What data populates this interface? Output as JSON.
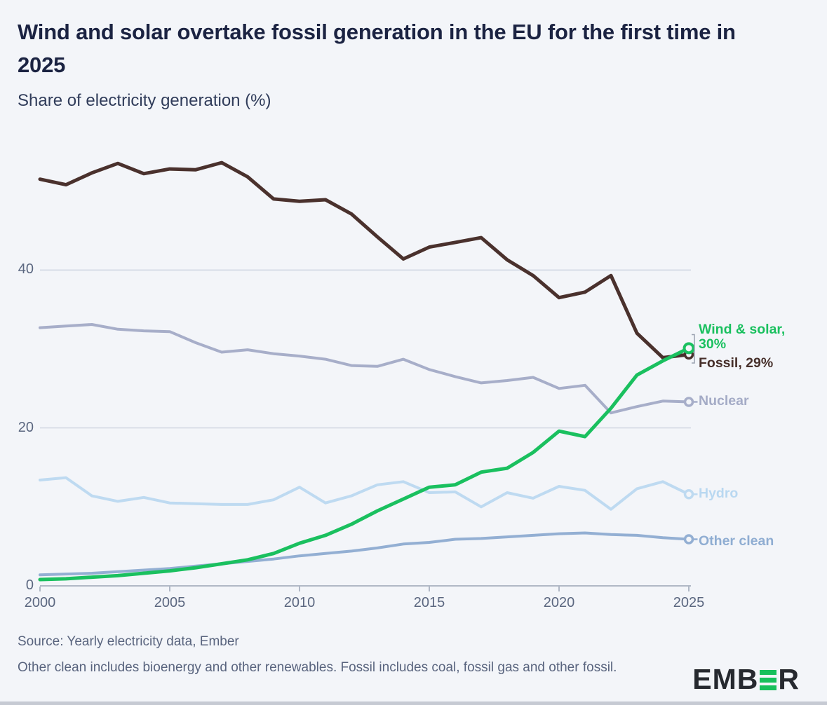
{
  "title": "Wind and solar overtake fossil generation in the EU for the first time in 2025",
  "subtitle": "Share of electricity generation (%)",
  "colors": {
    "background": "#f3f5f9",
    "title": "#1b2342",
    "grid": "#ccd2df",
    "axis": "#9aa3b4",
    "tick_text": "#5b6780",
    "bracket": "#9aa2b0",
    "fossil": "#4a312d",
    "wind_solar": "#1ac05f",
    "nuclear": "#a7aec9",
    "hydro": "#bedaf1",
    "other_clean": "#93afd3"
  },
  "chart_data": {
    "type": "line",
    "title": "Wind and solar overtake fossil generation in the EU for the first time in 2025",
    "subtitle": "Share of electricity generation (%)",
    "xlabel": "",
    "ylabel": "Share of electricity generation (%)",
    "xlim": [
      2000,
      2025
    ],
    "ylim": [
      0,
      56
    ],
    "grid": "horizontal",
    "legend_position": "right-of-line-ends",
    "xticks": [
      2000,
      2005,
      2010,
      2015,
      2020,
      2025
    ],
    "yticks": [
      0,
      20,
      40
    ],
    "x": [
      2000,
      2001,
      2002,
      2003,
      2004,
      2005,
      2006,
      2007,
      2008,
      2009,
      2010,
      2011,
      2012,
      2013,
      2014,
      2015,
      2016,
      2017,
      2018,
      2019,
      2020,
      2021,
      2022,
      2023,
      2024,
      2025
    ],
    "series": [
      {
        "id": "other_clean",
        "name": "Other clean",
        "color": "#93afd3",
        "values": [
          1.4,
          1.5,
          1.6,
          1.8,
          2.0,
          2.2,
          2.5,
          2.8,
          3.1,
          3.4,
          3.8,
          4.1,
          4.4,
          4.8,
          5.3,
          5.5,
          5.9,
          6.0,
          6.2,
          6.4,
          6.6,
          6.7,
          6.5,
          6.4,
          6.1,
          5.9
        ]
      },
      {
        "id": "hydro",
        "name": "Hydro",
        "color": "#bedaf1",
        "values": [
          13.4,
          13.7,
          11.4,
          10.7,
          11.2,
          10.5,
          10.4,
          10.3,
          10.3,
          10.9,
          12.5,
          10.5,
          11.4,
          12.8,
          13.2,
          11.8,
          11.9,
          10.0,
          11.8,
          11.1,
          12.6,
          12.1,
          9.7,
          12.3,
          13.2,
          11.6
        ]
      },
      {
        "id": "nuclear",
        "name": "Nuclear",
        "color": "#a7aec9",
        "values": [
          32.7,
          32.9,
          33.1,
          32.5,
          32.3,
          32.2,
          30.8,
          29.6,
          29.9,
          29.4,
          29.1,
          28.7,
          27.9,
          27.8,
          28.7,
          27.4,
          26.5,
          25.7,
          26.0,
          26.4,
          25.0,
          25.4,
          21.9,
          22.7,
          23.4,
          23.3
        ]
      },
      {
        "id": "fossil",
        "name": "Fossil",
        "color": "#4a312d",
        "values": [
          51.5,
          50.8,
          52.3,
          53.5,
          52.2,
          52.8,
          52.7,
          53.6,
          51.8,
          49.0,
          48.7,
          48.9,
          47.1,
          44.2,
          41.4,
          42.9,
          43.5,
          44.1,
          41.3,
          39.3,
          36.5,
          37.2,
          39.3,
          32.0,
          28.9,
          29.3
        ]
      },
      {
        "id": "wind_solar",
        "name": "Wind & solar",
        "color": "#1ac05f",
        "values": [
          0.8,
          0.9,
          1.1,
          1.3,
          1.6,
          1.9,
          2.3,
          2.8,
          3.3,
          4.1,
          5.4,
          6.4,
          7.8,
          9.5,
          11.0,
          12.5,
          12.8,
          14.4,
          14.9,
          16.9,
          19.6,
          18.9,
          22.5,
          26.7,
          28.5,
          30.1
        ]
      }
    ],
    "annotations": [
      {
        "series": "wind_solar",
        "text": "Wind & solar, 30%"
      },
      {
        "series": "fossil",
        "text": "Fossil, 29%"
      },
      {
        "series": "nuclear",
        "text": "Nuclear"
      },
      {
        "series": "hydro",
        "text": "Hydro"
      },
      {
        "series": "other_clean",
        "text": "Other clean"
      }
    ]
  },
  "tick_labels": {
    "x": [
      "2000",
      "2005",
      "2010",
      "2015",
      "2020",
      "2025"
    ],
    "y": [
      "0",
      "20",
      "40"
    ]
  },
  "series_labels": {
    "wind_solar_line1": "Wind & solar,",
    "wind_solar_line2": "30%",
    "fossil": "Fossil, 29%",
    "nuclear": "Nuclear",
    "hydro": "Hydro",
    "other_clean": "Other clean"
  },
  "footer": {
    "source": "Source: Yearly electricity data, Ember",
    "note": "Other clean includes bioenergy and other renewables. Fossil includes coal, fossil gas and other fossil."
  },
  "logo": {
    "part1": "EMB",
    "part2": "R"
  }
}
